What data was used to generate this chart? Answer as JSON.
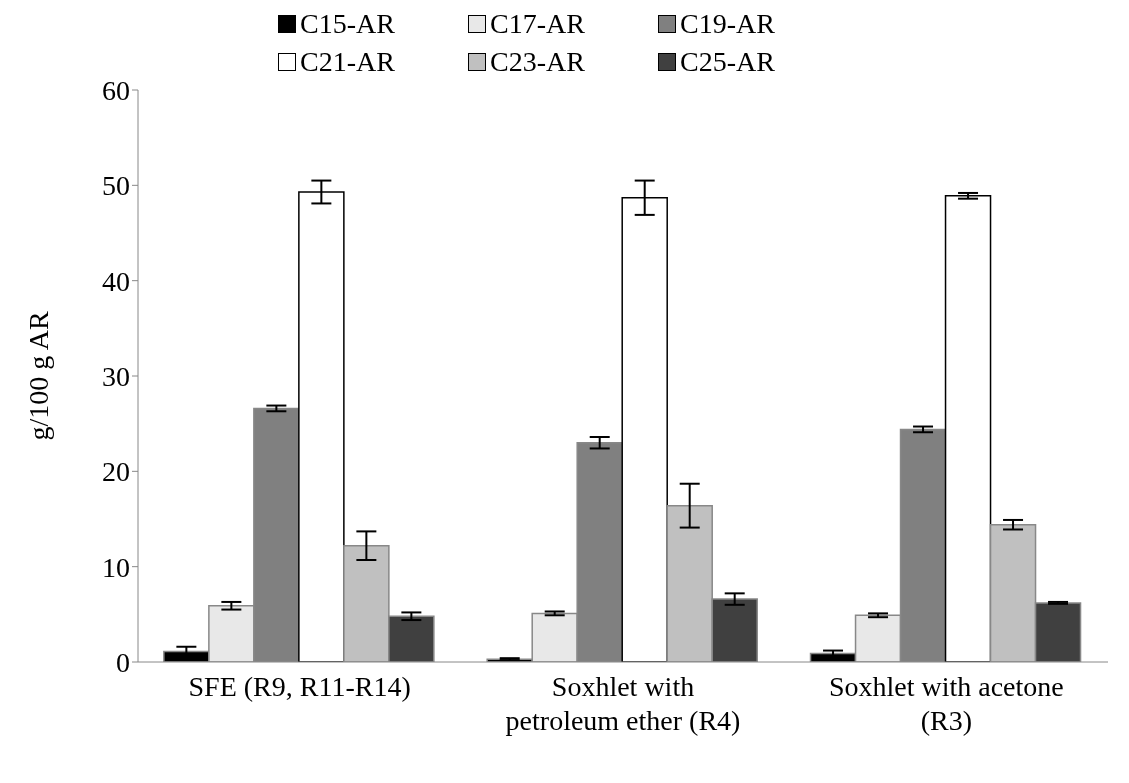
{
  "chart_data": {
    "type": "bar",
    "ylabel": "g/100 g AR",
    "categories": [
      "SFE (R9, R11-R14)",
      "Soxhlet with petroleum ether (R4)",
      "Soxhlet with acetone (R3)"
    ],
    "series": [
      {
        "name": "C15-AR",
        "color": "#000000",
        "values": [
          1.1,
          0.3,
          0.9
        ],
        "errors": [
          0.5,
          0.1,
          0.3
        ]
      },
      {
        "name": "C17-AR",
        "color": "#e8e8e8",
        "values": [
          5.9,
          5.1,
          4.9
        ],
        "errors": [
          0.4,
          0.2,
          0.2
        ]
      },
      {
        "name": "C19-AR",
        "color": "#808080",
        "values": [
          26.6,
          23.0,
          24.4
        ],
        "errors": [
          0.3,
          0.6,
          0.3
        ]
      },
      {
        "name": "C21-AR",
        "color": "#ffffff",
        "values": [
          49.3,
          48.7,
          48.9
        ],
        "errors": [
          1.2,
          1.8,
          0.3
        ]
      },
      {
        "name": "C23-AR",
        "color": "#c0c0c0",
        "values": [
          12.2,
          16.4,
          14.4
        ],
        "errors": [
          1.5,
          2.3,
          0.5
        ]
      },
      {
        "name": "C25-AR",
        "color": "#404040",
        "values": [
          4.8,
          6.6,
          6.2
        ],
        "errors": [
          0.4,
          0.6,
          0.1
        ]
      }
    ],
    "ylim": [
      0,
      60
    ],
    "yticks": [
      0,
      10,
      20,
      30,
      40,
      50,
      60
    ],
    "grid": false,
    "legend": "top"
  }
}
